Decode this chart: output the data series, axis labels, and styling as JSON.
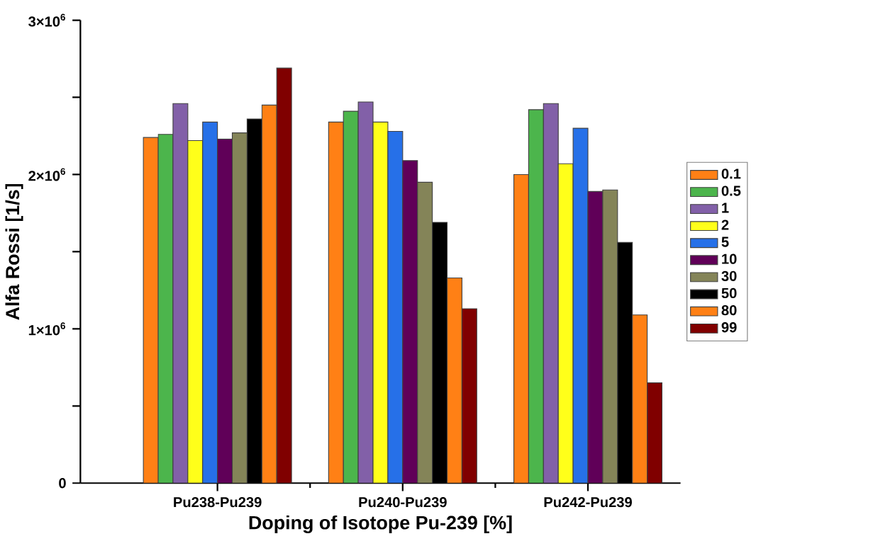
{
  "chart_data": {
    "type": "bar",
    "xlabel": "Doping of Isotope Pu-239 [%]",
    "ylabel": "Alfa Rossi [1/s]",
    "categories": [
      "Pu238-Pu239",
      "Pu240-Pu239",
      "Pu242-Pu239"
    ],
    "series": [
      {
        "name": "0.1",
        "color": "#ff8015",
        "values": [
          2240000,
          2340000,
          2000000
        ]
      },
      {
        "name": "0.5",
        "color": "#4cb54c",
        "values": [
          2260000,
          2410000,
          2420000
        ]
      },
      {
        "name": "1",
        "color": "#8260a8",
        "values": [
          2460000,
          2470000,
          2460000
        ]
      },
      {
        "name": "2",
        "color": "#ffff1a",
        "values": [
          2220000,
          2340000,
          2070000
        ]
      },
      {
        "name": "5",
        "color": "#2670e8",
        "values": [
          2340000,
          2280000,
          2300000
        ]
      },
      {
        "name": "10",
        "color": "#600058",
        "values": [
          2230000,
          2090000,
          1890000
        ]
      },
      {
        "name": "30",
        "color": "#848458",
        "values": [
          2270000,
          1950000,
          1900000
        ]
      },
      {
        "name": "50",
        "color": "#000000",
        "values": [
          2360000,
          1690000,
          1560000
        ]
      },
      {
        "name": "80",
        "color": "#ff8015",
        "values": [
          2450000,
          1330000,
          1090000
        ]
      },
      {
        "name": "99",
        "color": "#800000",
        "values": [
          2690000,
          1130000,
          650000
        ]
      }
    ],
    "ylim": [
      0,
      3000000
    ],
    "yticks": [
      0,
      {
        "value": 500000,
        "label": null
      },
      {
        "value": 1000000,
        "label": "1×10$^{6}$"
      },
      {
        "value": 1500000,
        "label": null
      },
      {
        "value": 2000000,
        "label": "2×10$^{6}$"
      },
      {
        "value": 2500000,
        "label": null
      },
      {
        "value": 3000000,
        "label": "3×10$^{6}$"
      }
    ],
    "legend": "right"
  }
}
